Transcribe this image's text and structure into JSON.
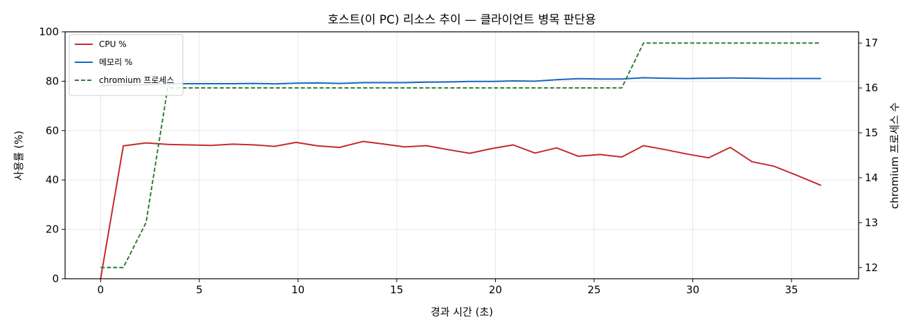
{
  "chart_data": {
    "type": "line",
    "title": "호스트(이 PC) 리소스 추이 — 클라이언트 병목 판단용",
    "xlabel": "경과 시간 (초)",
    "ylabel": "사용률 (%)",
    "y2label": "chromium 프로세스 수",
    "xlim": [
      -1.8,
      38.4
    ],
    "ylim": [
      0,
      100
    ],
    "y2lim": [
      11.75,
      17.25
    ],
    "xticks": [
      0,
      5,
      10,
      15,
      20,
      25,
      30,
      35
    ],
    "yticks": [
      0,
      20,
      40,
      60,
      80,
      100
    ],
    "y2ticks": [
      12,
      13,
      14,
      15,
      16,
      17
    ],
    "grid": true,
    "legend_position": "top-left",
    "series": [
      {
        "name": "CPU %",
        "axis": "left",
        "color": "#c62828",
        "style": "solid",
        "x": [
          0,
          1.15,
          2.3,
          3.4,
          4.5,
          5.6,
          6.7,
          7.8,
          8.8,
          9.9,
          11.0,
          12.1,
          13.3,
          14.3,
          15.4,
          16.5,
          17.6,
          18.7,
          19.8,
          20.9,
          22.0,
          23.1,
          24.2,
          25.3,
          26.4,
          27.5,
          28.6,
          29.7,
          30.8,
          31.9,
          33.0,
          34.1,
          35.3,
          36.5
        ],
        "values": [
          0,
          53.8,
          55.0,
          54.4,
          54.2,
          54.0,
          54.5,
          54.2,
          53.6,
          55.2,
          53.8,
          53.2,
          55.6,
          54.6,
          53.4,
          53.9,
          52.3,
          50.8,
          52.7,
          54.2,
          50.9,
          53.0,
          49.6,
          50.3,
          49.3,
          53.9,
          52.3,
          50.5,
          49.0,
          53.2,
          47.4,
          45.6,
          41.8,
          37.8
        ]
      },
      {
        "name": "메모리 %",
        "axis": "left",
        "color": "#1565c0",
        "style": "solid",
        "x": [
          0,
          1.15,
          2.3,
          3.4,
          4.5,
          5.6,
          6.7,
          7.8,
          8.8,
          9.9,
          11.0,
          12.1,
          13.3,
          14.3,
          15.4,
          16.5,
          17.6,
          18.7,
          19.8,
          20.9,
          22.0,
          23.1,
          24.2,
          25.3,
          26.4,
          27.5,
          28.6,
          29.7,
          30.8,
          31.9,
          33.0,
          34.1,
          35.3,
          36.5
        ],
        "values": [
          78.2,
          78.4,
          78.6,
          78.9,
          79.0,
          79.0,
          79.0,
          79.1,
          78.9,
          79.2,
          79.3,
          79.1,
          79.4,
          79.4,
          79.4,
          79.6,
          79.7,
          79.9,
          79.9,
          80.1,
          80.0,
          80.6,
          81.0,
          80.9,
          80.9,
          81.4,
          81.2,
          81.1,
          81.2,
          81.3,
          81.2,
          81.1,
          81.1,
          81.1
        ]
      },
      {
        "name": "chromium 프로세스",
        "axis": "right",
        "color": "#2e7d32",
        "style": "dashed",
        "x": [
          0,
          1.15,
          2.3,
          3.4,
          4.5,
          5.6,
          6.7,
          7.8,
          8.8,
          9.9,
          11.0,
          12.1,
          13.3,
          14.3,
          15.4,
          16.5,
          17.6,
          18.7,
          19.8,
          20.9,
          22.0,
          23.1,
          24.2,
          25.3,
          26.4,
          27.5,
          28.6,
          29.7,
          30.8,
          31.9,
          33.0,
          34.1,
          35.3,
          36.5
        ],
        "values": [
          12,
          12,
          13,
          16,
          16,
          16,
          16,
          16,
          16,
          16,
          16,
          16,
          16,
          16,
          16,
          16,
          16,
          16,
          16,
          16,
          16,
          16,
          16,
          16,
          16,
          17,
          17,
          17,
          17,
          17,
          17,
          17,
          17,
          17
        ]
      }
    ]
  }
}
